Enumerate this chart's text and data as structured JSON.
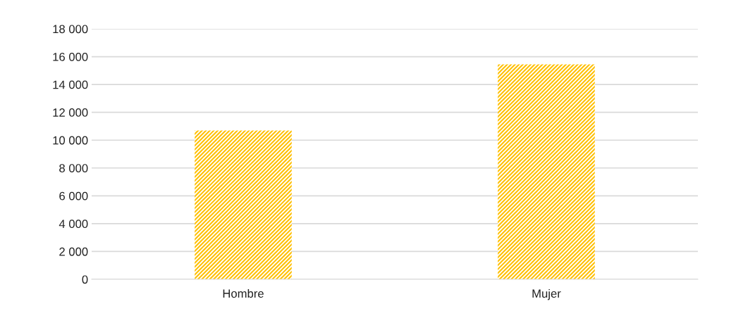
{
  "chart_data": {
    "type": "bar",
    "categories": [
      "Hombre",
      "Mujer"
    ],
    "values": [
      10700,
      15450
    ],
    "color": "#ffc000",
    "ylim": [
      0,
      18000
    ],
    "yticks": [
      {
        "value": 0,
        "label": "0"
      },
      {
        "value": 2000,
        "label": "2 000"
      },
      {
        "value": 4000,
        "label": "4 000"
      },
      {
        "value": 6000,
        "label": "6 000"
      },
      {
        "value": 8000,
        "label": "8 000"
      },
      {
        "value": 10000,
        "label": "10 000"
      },
      {
        "value": 12000,
        "label": "12 000"
      },
      {
        "value": 14000,
        "label": "14 000"
      },
      {
        "value": 16000,
        "label": "16 000"
      },
      {
        "value": 18000,
        "label": "18 000"
      }
    ],
    "grid": "y",
    "legend": false
  }
}
